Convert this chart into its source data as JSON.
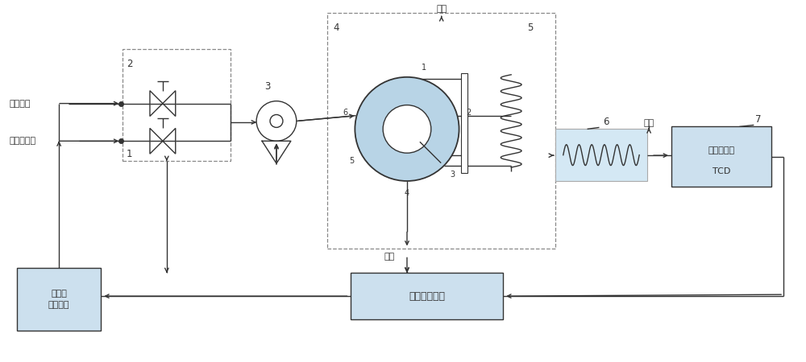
{
  "bg_color": "#ffffff",
  "line_color": "#333333",
  "box_fill": "#cce0ee",
  "dashed_box_color": "#888888",
  "valve_fill": "#b8d4e6",
  "coil6_box_fill": "#d4e8f4",
  "labels": {
    "ammonia_tank": "氨气罐区",
    "purifier_outlet": "纯化器出口",
    "carrier_gas_top": "载气",
    "carrier_gas_mid": "载气",
    "exhaust": "排空",
    "label2": "2",
    "label1": "1",
    "label3": "3",
    "label4": "4",
    "label5": "5",
    "label6": "6",
    "label7": "7",
    "monitor_box": "监控报警平台",
    "purifier_switch": "纯化器\n切换装置",
    "tcd_line1": "热导检测器",
    "tcd_line2": "TCD"
  }
}
